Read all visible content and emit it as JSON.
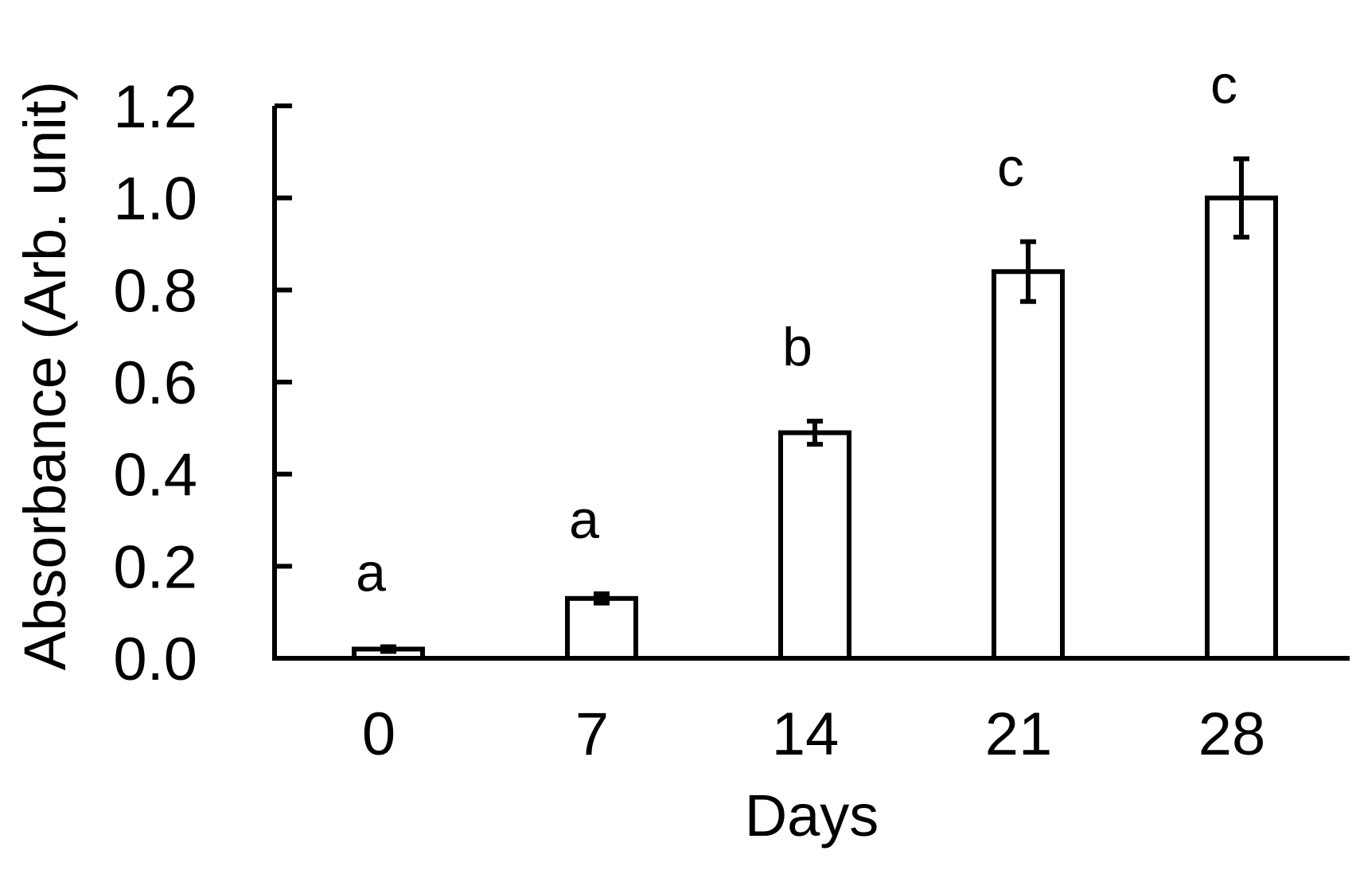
{
  "chart_data": {
    "type": "bar",
    "title": "",
    "xlabel": "Days",
    "ylabel": "Absorbance (Arb. unit)",
    "categories": [
      "0",
      "7",
      "14",
      "21",
      "28"
    ],
    "values": [
      0.02,
      0.13,
      0.49,
      0.84,
      1.0
    ],
    "errors": [
      0.005,
      0.01,
      0.025,
      0.065,
      0.085
    ],
    "significance_labels": [
      "a",
      "a",
      "b",
      "c",
      "c"
    ],
    "ylim": [
      0,
      1.2
    ],
    "yticks": [
      "0.0",
      "0.2",
      "0.4",
      "0.6",
      "0.8",
      "1.0",
      "1.2"
    ],
    "grid": false,
    "legend": "none",
    "colors": {
      "bar_fill": "#ffffff",
      "bar_stroke": "#000000"
    }
  }
}
